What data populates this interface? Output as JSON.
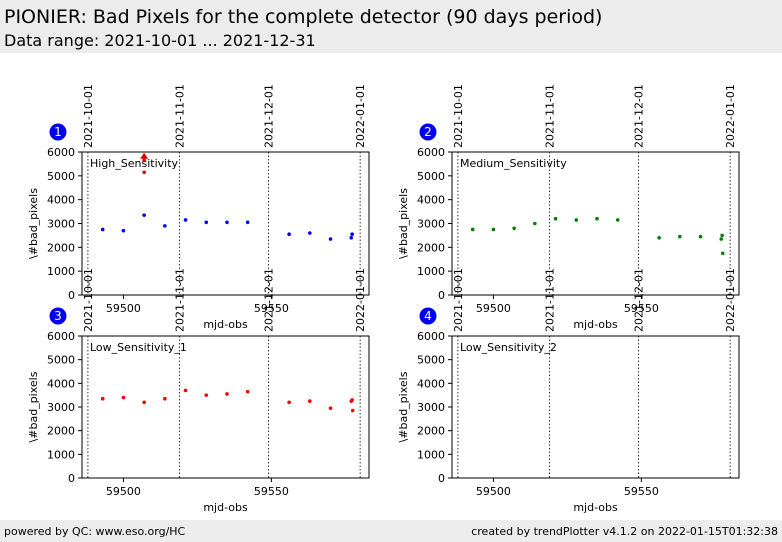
{
  "header": {
    "title": "PIONIER: Bad Pixels for the complete detector (90 days period)",
    "subtitle": "Data range: 2021-10-01 ... 2021-12-31"
  },
  "footer": {
    "left": "powered by QC: www.eso.org/HC",
    "right": "created by trendPlotter v4.1.2 on 2022-01-15T01:32:38"
  },
  "colors": {
    "badge": "#0000ee",
    "dates": "#000000"
  },
  "chart_data": [
    {
      "type": "scatter",
      "panel": "1",
      "label": "High_Sensitivity",
      "xlabel": "mjd-obs",
      "ylabel": "\\#bad_pixels",
      "xlim": [
        59486,
        59583
      ],
      "ylim": [
        0,
        6000
      ],
      "xticks": [
        59500,
        59550
      ],
      "yticks": [
        0,
        1000,
        2000,
        3000,
        4000,
        5000,
        6000
      ],
      "date_lines": [
        {
          "x": 59488,
          "label": "2021-10-01"
        },
        {
          "x": 59519,
          "label": "2021-11-01"
        },
        {
          "x": 59549,
          "label": "2021-12-01"
        },
        {
          "x": 59580,
          "label": "2022-01-01"
        }
      ],
      "color": "#0000ff",
      "x": [
        59493,
        59500,
        59507,
        59514,
        59521,
        59528,
        59535,
        59542,
        59556,
        59563,
        59570,
        59577,
        59577.3
      ],
      "y": [
        2750,
        2700,
        3350,
        2900,
        3150,
        3050,
        3050,
        3050,
        2550,
        2600,
        2350,
        2400,
        2550
      ],
      "outliers": {
        "color": "#dd0000",
        "x": [
          59507,
          59507,
          59507
        ],
        "y": [
          5800,
          5650,
          5150
        ]
      }
    },
    {
      "type": "scatter",
      "panel": "2",
      "label": "Medium_Sensitivity",
      "xlabel": "mjd-obs",
      "ylabel": "\\#bad_pixels",
      "xlim": [
        59486,
        59583
      ],
      "ylim": [
        0,
        6000
      ],
      "xticks": [
        59500,
        59550
      ],
      "yticks": [
        0,
        1000,
        2000,
        3000,
        4000,
        5000,
        6000
      ],
      "date_lines": [
        {
          "x": 59488,
          "label": "2021-10-01"
        },
        {
          "x": 59519,
          "label": "2021-11-01"
        },
        {
          "x": 59549,
          "label": "2021-12-01"
        },
        {
          "x": 59580,
          "label": "2022-01-01"
        }
      ],
      "color": "#008000",
      "x": [
        59493,
        59500,
        59507,
        59514,
        59521,
        59528,
        59535,
        59542,
        59556,
        59563,
        59570,
        59577,
        59577.3,
        59577.5
      ],
      "y": [
        2750,
        2750,
        2800,
        3000,
        3200,
        3150,
        3200,
        3150,
        2400,
        2450,
        2450,
        2350,
        2500,
        1750
      ]
    },
    {
      "type": "scatter",
      "panel": "3",
      "label": "Low_Sensitivity_1",
      "xlabel": "mjd-obs",
      "ylabel": "\\#bad_pixels",
      "xlim": [
        59486,
        59583
      ],
      "ylim": [
        0,
        6000
      ],
      "xticks": [
        59500,
        59550
      ],
      "yticks": [
        0,
        1000,
        2000,
        3000,
        4000,
        5000,
        6000
      ],
      "date_lines": [
        {
          "x": 59488,
          "label": "2021-10-01"
        },
        {
          "x": 59519,
          "label": "2021-11-01"
        },
        {
          "x": 59549,
          "label": "2021-12-01"
        },
        {
          "x": 59580,
          "label": "2022-01-01"
        }
      ],
      "color": "#ff0000",
      "x": [
        59493,
        59500,
        59507,
        59514,
        59521,
        59528,
        59535,
        59542,
        59556,
        59563,
        59570,
        59577,
        59577.3,
        59577.5
      ],
      "y": [
        3350,
        3400,
        3200,
        3350,
        3700,
        3500,
        3550,
        3650,
        3200,
        3250,
        2950,
        3250,
        3300,
        2850
      ]
    },
    {
      "type": "scatter",
      "panel": "4",
      "label": "Low_Sensitivity_2",
      "xlabel": "mjd-obs",
      "ylabel": "\\#bad_pixels",
      "xlim": [
        59486,
        59583
      ],
      "ylim": [
        0,
        6000
      ],
      "xticks": [
        59500,
        59550
      ],
      "yticks": [
        0,
        1000,
        2000,
        3000,
        4000,
        5000,
        6000
      ],
      "date_lines": [
        {
          "x": 59488,
          "label": "2021-10-01"
        },
        {
          "x": 59519,
          "label": "2021-11-01"
        },
        {
          "x": 59549,
          "label": "2021-12-01"
        },
        {
          "x": 59580,
          "label": "2022-01-01"
        }
      ],
      "color": "#000000",
      "x": [],
      "y": []
    }
  ]
}
